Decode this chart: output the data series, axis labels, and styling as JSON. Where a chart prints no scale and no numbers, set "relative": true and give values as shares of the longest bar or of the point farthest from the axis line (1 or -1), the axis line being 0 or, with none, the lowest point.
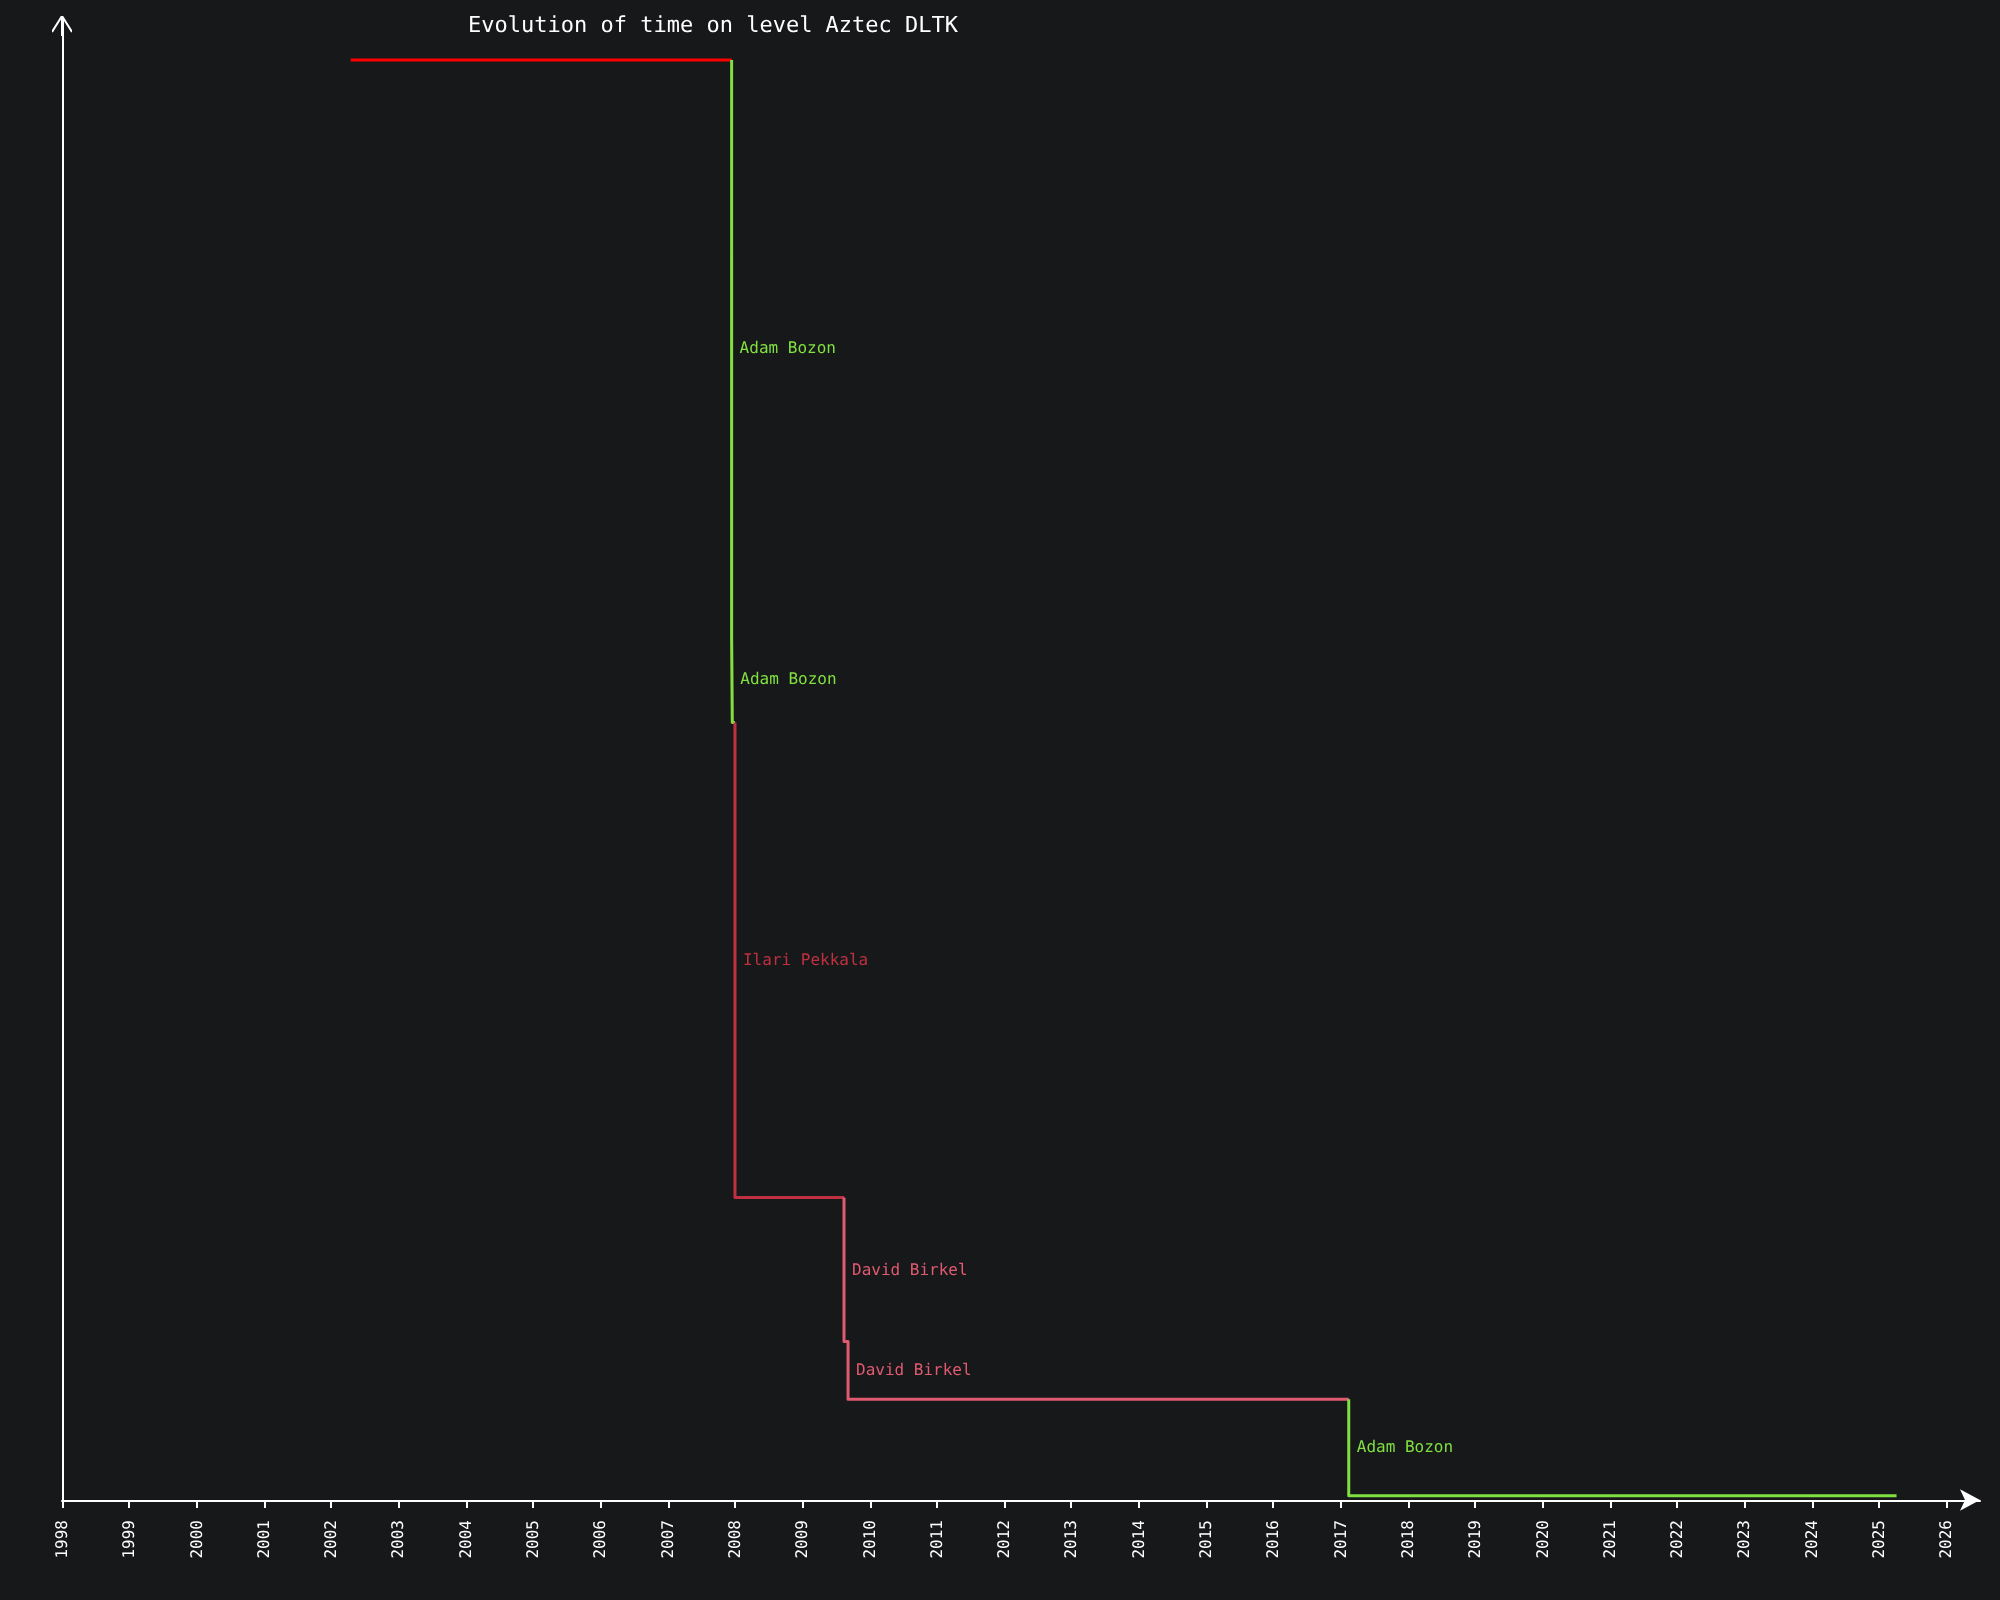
{
  "chart_data": {
    "type": "step",
    "title": "Evolution of time on level Aztec DLTK",
    "relative": true,
    "xlim": [
      1998,
      2026.5
    ],
    "xticks": [
      1998,
      1999,
      2000,
      2001,
      2002,
      2003,
      2004,
      2005,
      2006,
      2007,
      2008,
      2009,
      2010,
      2011,
      2012,
      2013,
      2014,
      2015,
      2016,
      2017,
      2018,
      2019,
      2020,
      2021,
      2022,
      2023,
      2024,
      2025,
      2026
    ],
    "grid": false,
    "marker": "none",
    "series": [
      {
        "color": "#ff0000",
        "x": [
          2002.29,
          2007.95
        ],
        "values": [
          1,
          1
        ]
      },
      {
        "name": "Adam Bozon",
        "color": "#80e040",
        "x": [
          2007.95,
          2007.96,
          2008.0
        ],
        "values": [
          1,
          0.6,
          0.54
        ]
      },
      {
        "name": "Ilari Pekkala",
        "color": "#c03040",
        "x": [
          2008.0,
          2009.62
        ],
        "values": [
          0.54,
          0.21
        ]
      },
      {
        "name": "David Birkel",
        "color": "#e05a70",
        "x": [
          2009.62,
          2009.68,
          2017.12
        ],
        "values": [
          0.21,
          0.11,
          0.07
        ]
      },
      {
        "name": "Adam Bozon",
        "color": "#80e040",
        "x": [
          2017.12,
          2025.26
        ],
        "values": [
          0.07,
          0.003
        ]
      }
    ]
  }
}
